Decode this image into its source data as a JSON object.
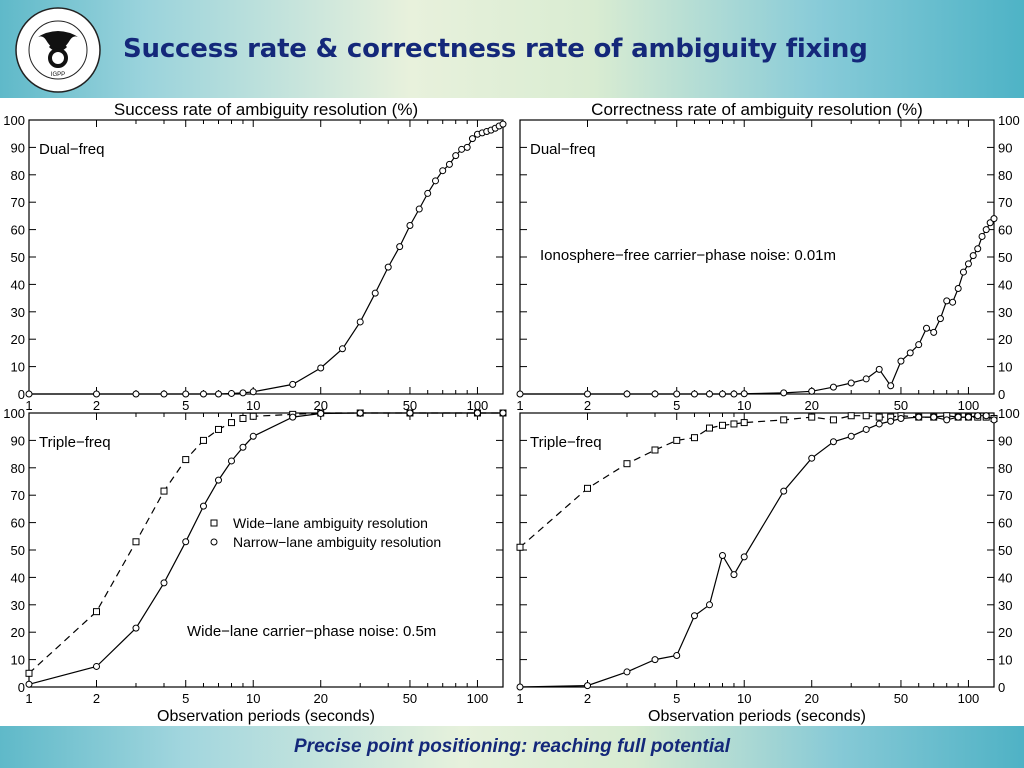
{
  "slide": {
    "title": "Success rate & correctness rate of ambiguity fixing",
    "footer": "Precise point positioning: reaching full potential",
    "logo": {
      "icon": "igpp-posthorn-seal-icon",
      "text": "CECIL H. AND IDA M. GREEN INSTITUTE OF GEOPHYSICS AND PLANETARY PHYSICS",
      "short": "IGPP"
    }
  },
  "figure": {
    "col_titles": [
      "Success rate of ambiguity resolution (%)",
      "Correctness rate of ambiguity resolution (%)"
    ],
    "xlabel": "Observation periods (seconds)"
  },
  "chart_data": [
    {
      "type": "line",
      "panel": "top-left",
      "title": "Success rate of ambiguity resolution (%)",
      "label": "Dual−freq",
      "xscale": "log",
      "xlim": [
        1,
        130
      ],
      "ylim": [
        0,
        100
      ],
      "xticks": [
        1,
        2,
        5,
        10,
        20,
        50,
        100
      ],
      "yticks": [
        0,
        10,
        20,
        30,
        40,
        50,
        60,
        70,
        80,
        90,
        100
      ],
      "series": [
        {
          "style": "solid",
          "marker": "circle",
          "x": [
            1,
            2,
            3,
            4,
            5,
            6,
            7,
            8,
            9,
            10,
            15,
            20,
            25,
            30,
            35,
            40,
            45,
            50,
            55,
            60,
            65,
            70,
            75,
            80,
            85,
            90,
            95,
            100,
            105,
            110,
            115,
            120,
            125,
            130
          ],
          "y": [
            0,
            0,
            0,
            0,
            0,
            0,
            0,
            0.2,
            0.4,
            0.8,
            3.5,
            9.5,
            16.5,
            26.3,
            36.8,
            46.3,
            53.8,
            61.5,
            67.5,
            73.2,
            77.8,
            81.5,
            83.8,
            87,
            89.3,
            90,
            93.2,
            94.8,
            95.3,
            95.8,
            96.3,
            97,
            97.8,
            98.5
          ]
        }
      ]
    },
    {
      "type": "line",
      "panel": "top-right",
      "title": "Correctness rate of ambiguity resolution (%)",
      "label": "Dual−freq",
      "annotation": "Ionosphere−free carrier−phase noise: 0.01m",
      "xscale": "log",
      "xlim": [
        1,
        130
      ],
      "ylim": [
        0,
        100
      ],
      "xticks": [
        1,
        2,
        5,
        10,
        20,
        50,
        100
      ],
      "yticks": [
        0,
        10,
        20,
        30,
        40,
        50,
        60,
        70,
        80,
        90,
        100
      ],
      "series": [
        {
          "style": "solid",
          "marker": "circle",
          "x": [
            1,
            2,
            3,
            4,
            5,
            6,
            7,
            8,
            9,
            10,
            15,
            20,
            25,
            30,
            35,
            40,
            45,
            50,
            55,
            60,
            65,
            70,
            75,
            80,
            85,
            90,
            95,
            100,
            105,
            110,
            115,
            120,
            125,
            130
          ],
          "y": [
            0,
            0,
            0,
            0,
            0,
            0,
            0,
            0,
            0,
            0.1,
            0.4,
            1,
            2.5,
            4,
            5.5,
            9,
            3,
            12,
            15,
            18,
            24,
            22.5,
            27.5,
            34,
            33.5,
            38.5,
            44.5,
            47.5,
            50.5,
            53,
            57.5,
            60,
            62.5,
            64
          ]
        }
      ]
    },
    {
      "type": "line",
      "panel": "bottom-left",
      "label": "Triple−freq",
      "annotation": "Wide−lane carrier−phase noise: 0.5m",
      "xlabel": "Observation periods (seconds)",
      "xscale": "log",
      "xlim": [
        1,
        130
      ],
      "ylim": [
        0,
        100
      ],
      "xticks": [
        1,
        2,
        5,
        10,
        20,
        50,
        100
      ],
      "yticks": [
        0,
        10,
        20,
        30,
        40,
        50,
        60,
        70,
        80,
        90,
        100
      ],
      "legend": {
        "position": "middle-right"
      },
      "series": [
        {
          "name": "Wide−lane ambiguity resolution",
          "style": "dashed",
          "marker": "square",
          "x": [
            1,
            2,
            3,
            4,
            5,
            6,
            7,
            8,
            9,
            10,
            15,
            20,
            30,
            50,
            100,
            130
          ],
          "y": [
            5,
            27.5,
            53,
            71.5,
            83,
            90,
            94,
            96.5,
            98,
            98.8,
            99.5,
            100,
            100,
            100,
            100,
            100
          ]
        },
        {
          "name": "Narrow−lane ambiguity resolution",
          "style": "solid",
          "marker": "circle",
          "x": [
            1,
            2,
            3,
            4,
            5,
            6,
            7,
            8,
            9,
            10,
            15,
            20,
            30,
            50,
            100,
            130
          ],
          "y": [
            1,
            7.5,
            21.5,
            38,
            53,
            66,
            75.5,
            82.5,
            87.5,
            91.5,
            98.5,
            99.8,
            100,
            100,
            100,
            100
          ]
        }
      ]
    },
    {
      "type": "line",
      "panel": "bottom-right",
      "label": "Triple−freq",
      "xlabel": "Observation periods (seconds)",
      "xscale": "log",
      "xlim": [
        1,
        130
      ],
      "ylim": [
        0,
        100
      ],
      "xticks": [
        1,
        2,
        5,
        10,
        20,
        50,
        100
      ],
      "yticks": [
        0,
        10,
        20,
        30,
        40,
        50,
        60,
        70,
        80,
        90,
        100
      ],
      "series": [
        {
          "name": "Wide−lane ambiguity resolution",
          "style": "dashed",
          "marker": "square",
          "x": [
            1,
            2,
            3,
            4,
            5,
            6,
            7,
            8,
            9,
            10,
            15,
            20,
            25,
            30,
            35,
            40,
            45,
            50,
            60,
            70,
            80,
            90,
            100,
            110,
            120,
            130
          ],
          "y": [
            51,
            72.5,
            81.5,
            86.5,
            90,
            91,
            94.5,
            95.5,
            96,
            96.5,
            97.5,
            98.5,
            97.5,
            99,
            99,
            98.5,
            98.5,
            99,
            98.5,
            98.5,
            99,
            98.5,
            98.5,
            98.5,
            98.5,
            98
          ]
        },
        {
          "name": "Narrow−lane ambiguity resolution",
          "style": "solid",
          "marker": "circle",
          "x": [
            1,
            2,
            3,
            4,
            5,
            6,
            7,
            8,
            9,
            10,
            15,
            20,
            25,
            30,
            35,
            40,
            45,
            50,
            60,
            70,
            80,
            90,
            100,
            110,
            120,
            130
          ],
          "y": [
            0,
            0.5,
            5.5,
            10,
            11.5,
            26,
            30,
            48,
            41,
            47.5,
            71.5,
            83.5,
            89.5,
            91.5,
            94,
            96,
            97,
            98,
            98.5,
            98.5,
            97.5,
            98.5,
            98.5,
            99,
            99,
            97.5
          ]
        }
      ]
    }
  ]
}
